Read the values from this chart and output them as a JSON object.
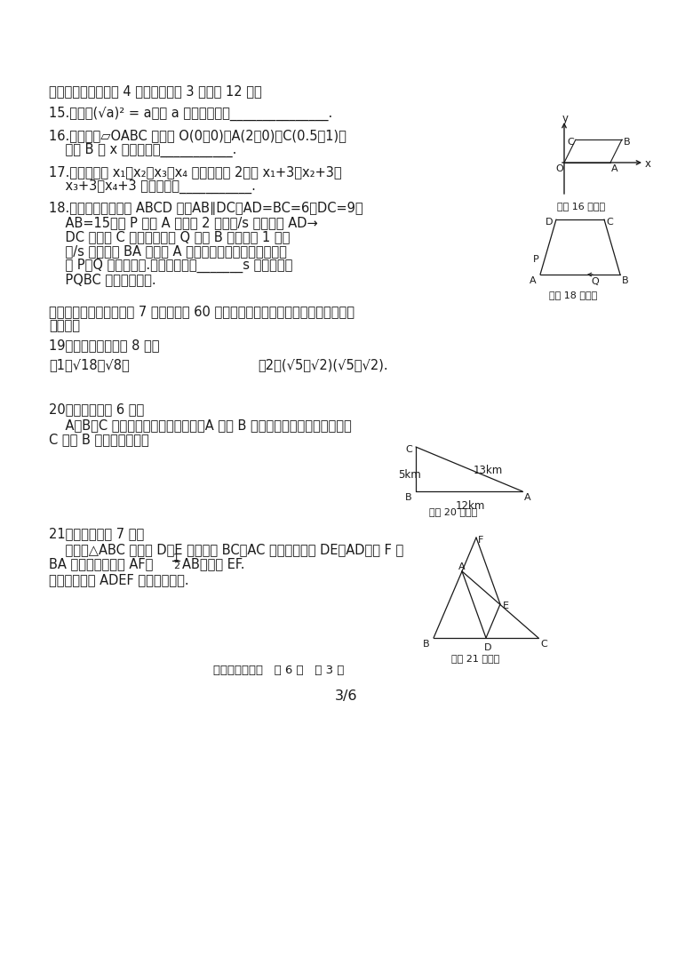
{
  "bg_color": "#ffffff",
  "text_color": "#2a2a2a",
  "section2_header": "二、填空题（本题共 4 道小题，每题 3 分，共 12 分）",
  "q15": "15．已知(√̅a̅)² = a，则 a 的取值范围是_______________.",
  "q15_plain": "15.　已知(√a)² = a，则 a 的取値范围是_______________.",
  "q16_line1": "16.　如图，▱OABC 的顶点 O(0，0)，A(2，0)，C(0.5，1)，",
  "q16_line2": "    则点 B 到 x 轴的距离是___________.",
  "q17_line1": "17.　已知样本 x₁、x₂、x₃、x₄ 的平均数是 2，则 x₁+3、x₂+3、",
  "q17_line2": "    x₃+3、x₄+3 的平均数是___________.",
  "q18_line1": "18.　如图，在四边形 ABCD 中，AB∥DC，AD=BC=6，DC=9，",
  "q18_line2": "    AB=15，点 P 从点 A 出发以 2 个单位/s 的速度沿 AD→",
  "q18_line3": "    DC 向终点 C 运动，同时点 Q 从点 B 出发，以 1 个单",
  "q18_line4": "    位/s 的速度沿 BA 向终点 A 运动．当有一点到达终点时，",
  "q18_line5": "    点 P、Q 就停止运动.当运动时间为_______s 时，四边形",
  "q18_line6": "    PQBC 为平行四边形.",
  "section3_header": "三、解答题：（本大题共 7 个小题，共 60 分．解答应写出文字说明、证明过程或演",
  "section3_header2": "算步骤）",
  "q19_header": "19．计算（本题满分 8 分）",
  "q19_1": "（1）√18＋√8；",
  "q19_2": "（2）(√5＋√2)(√5－√2).",
  "q20_header": "20．（本题满分 6 分）",
  "q20_line1": "    A、B、C 三地的两两距离如图所示，A 地在 B 地的正东方向，通过计算说明",
  "q20_line2": "C 地在 B 地的什么方向？",
  "q21_header": "21．（本题满分 7 分）",
  "q21_line1": "    如图，△ABC 中，点 D、E 分别是边 BC、AC 的中点，连接 DE、AD，点 F 在",
  "q21_line2": "BA 的延长线上，且 AF＝",
  "q21_line2b": "AB，连接 EF.",
  "q21_line3": "求证：四边形 ADEF 是平行四边形.",
  "footer": "八年级数学试卷   共 6 页   第 3 页",
  "page_num": "3/6"
}
